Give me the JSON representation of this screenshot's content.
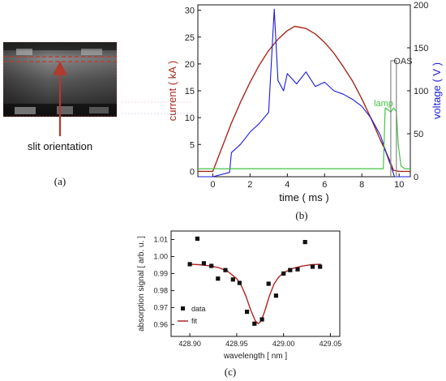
{
  "panel_a": {
    "annotation": "slit orientation",
    "label": "(a)",
    "colors": {
      "dashed": "#c0392b",
      "arrow": "#b03a2e",
      "frame": "#d04040"
    }
  },
  "chart_data": [
    {
      "type": "line",
      "panel": "(b)",
      "xlabel": "time ( ms )",
      "ylabel_left": "current ( kA )",
      "ylabel_right": "voltage ( V )",
      "xlim": [
        -0.8,
        10.6
      ],
      "ylim_left": [
        -1,
        31
      ],
      "ylim_right": [
        0,
        200
      ],
      "x_ticks": [
        0,
        2,
        4,
        6,
        8,
        10
      ],
      "y_ticks_left": [
        0,
        5,
        10,
        15,
        20,
        25,
        30
      ],
      "y_ticks_right": [
        0,
        50,
        100,
        150,
        200
      ],
      "annotations": [
        "OAS",
        "lamp"
      ],
      "colors": {
        "current": "#a52a1a",
        "voltage": "#1a1adc",
        "lamp": "#44c444",
        "oas": "#888888"
      },
      "series": [
        {
          "axis": "left",
          "x": [
            -0.8,
            0.0,
            0.5,
            1.0,
            1.5,
            2.0,
            2.5,
            3.0,
            3.5,
            4.0,
            4.4,
            5.0,
            5.5,
            6.0,
            6.5,
            7.0,
            7.5,
            8.0,
            8.5,
            9.0,
            9.5,
            9.7,
            10.0,
            10.6
          ],
          "values": [
            0.0,
            0.0,
            4.5,
            9.0,
            13.0,
            16.6,
            19.8,
            22.5,
            24.6,
            26.2,
            27.0,
            26.6,
            25.6,
            24.0,
            22.0,
            19.5,
            16.8,
            13.5,
            9.8,
            5.8,
            2.0,
            0.2,
            0.0,
            0.0
          ]
        },
        {
          "axis": "right",
          "x": [
            -0.8,
            0.0,
            0.9,
            1.0,
            1.5,
            2.0,
            2.5,
            3.0,
            3.3,
            3.5,
            3.8,
            4.0,
            4.5,
            5.0,
            5.5,
            6.0,
            6.5,
            7.0,
            7.5,
            8.0,
            8.5,
            9.0,
            9.4,
            9.6,
            9.75,
            9.9,
            10.6
          ],
          "values": [
            0,
            0,
            5,
            28,
            38,
            52,
            62,
            75,
            195,
            112,
            100,
            120,
            108,
            122,
            105,
            110,
            100,
            96,
            90,
            82,
            68,
            48,
            22,
            10,
            0,
            0,
            0
          ]
        },
        {
          "axis": "left",
          "x": [
            -0.8,
            9.15,
            9.25,
            9.4,
            9.55,
            9.7,
            9.85,
            9.95,
            10.1,
            10.3,
            10.6
          ],
          "values": [
            0.5,
            0.5,
            11.8,
            11.5,
            11.0,
            11.8,
            11.2,
            5.0,
            1.0,
            0.5,
            0.5
          ]
        },
        {
          "axis": "right",
          "x": [
            9.55,
            9.55,
            9.85,
            9.85
          ],
          "values": [
            0,
            135,
            135,
            0
          ]
        }
      ]
    },
    {
      "type": "scatter",
      "panel": "(c)",
      "xlabel": "wavelength [ nm ]",
      "ylabel": "absorption signal [ arb. u. ]",
      "xlim": [
        428.88,
        429.06
      ],
      "ylim": [
        0.953,
        1.015
      ],
      "x_ticks": [
        428.9,
        428.95,
        429.0,
        429.05
      ],
      "x_tick_labels": [
        "428.90",
        "428.95",
        "429.00",
        "429.05"
      ],
      "y_ticks": [
        0.96,
        0.97,
        0.98,
        0.99,
        1.0,
        1.01
      ],
      "y_tick_labels": [
        "0.96",
        "0.97",
        "0.98",
        "0.99",
        "1.00",
        "1.01"
      ],
      "legend": {
        "position": "bottom-left",
        "entries": [
          "data",
          "fit"
        ]
      },
      "colors": {
        "data": "#111111",
        "fit": "#b22222"
      },
      "series": [
        {
          "name": "data",
          "x": [
            428.9,
            428.908,
            428.915,
            428.923,
            428.93,
            428.938,
            428.946,
            428.953,
            428.961,
            428.969,
            428.977,
            428.984,
            428.992,
            429.0,
            429.007,
            429.015,
            429.023,
            429.031,
            429.039
          ],
          "values": [
            0.9955,
            1.0105,
            0.996,
            0.9945,
            0.987,
            0.992,
            0.9865,
            0.9845,
            0.9675,
            0.9605,
            0.963,
            0.984,
            0.977,
            0.99,
            0.992,
            0.9925,
            1.0085,
            0.994,
            0.994
          ]
        },
        {
          "name": "fit",
          "x": [
            428.9,
            428.91,
            428.92,
            428.93,
            428.94,
            428.95,
            428.955,
            428.96,
            428.965,
            428.97,
            428.973,
            428.976,
            428.98,
            428.985,
            428.99,
            428.995,
            429.0,
            429.01,
            429.02,
            429.03,
            429.04
          ],
          "values": [
            0.9955,
            0.9952,
            0.9946,
            0.9936,
            0.9915,
            0.987,
            0.9828,
            0.9765,
            0.9685,
            0.962,
            0.9605,
            0.962,
            0.968,
            0.977,
            0.984,
            0.988,
            0.9905,
            0.993,
            0.9944,
            0.9952,
            0.9955
          ]
        }
      ]
    }
  ]
}
